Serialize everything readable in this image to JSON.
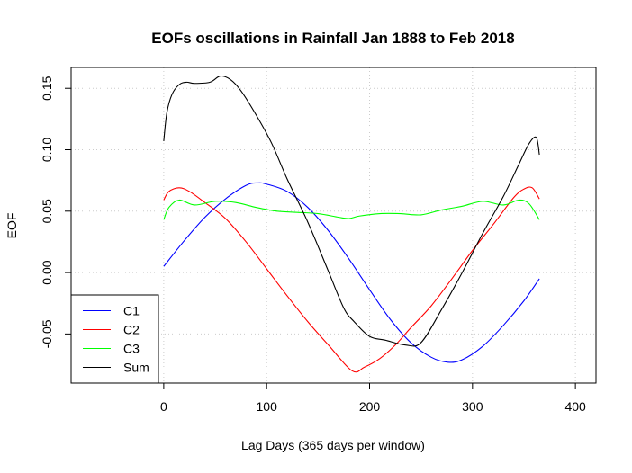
{
  "chart_data": {
    "type": "line",
    "title": "EOFs oscillations in Rainfall Jan 1888 to Feb 2018",
    "xlabel": "Lag Days (365 days per window)",
    "ylabel": "EOF",
    "xlim": [
      -90,
      420
    ],
    "ylim": [
      -0.09,
      0.167
    ],
    "x_ticks": [
      0,
      100,
      200,
      300,
      400
    ],
    "y_ticks": [
      -0.05,
      0.0,
      0.05,
      0.1,
      0.15
    ],
    "x_tick_labels": [
      "0",
      "100",
      "200",
      "300",
      "400"
    ],
    "y_tick_labels": [
      "-0.05",
      "0.00",
      "0.05",
      "0.10",
      "0.15"
    ],
    "grid": true,
    "legend_position": "bottom-left",
    "series": [
      {
        "name": "C1",
        "color": "#0000ff",
        "x": [
          0,
          20,
          40,
          60,
          80,
          91,
          100,
          120,
          140,
          160,
          180,
          200,
          220,
          240,
          260,
          276,
          290,
          310,
          330,
          350,
          365
        ],
        "y": [
          0.005,
          0.026,
          0.045,
          0.06,
          0.071,
          0.073,
          0.072,
          0.066,
          0.053,
          0.034,
          0.011,
          -0.014,
          -0.038,
          -0.057,
          -0.069,
          -0.073,
          -0.071,
          -0.06,
          -0.043,
          -0.023,
          -0.005
        ]
      },
      {
        "name": "C2",
        "color": "#ff0000",
        "x": [
          0,
          5,
          15,
          25,
          40,
          60,
          80,
          100,
          120,
          140,
          160,
          183,
          195,
          210,
          225,
          240,
          260,
          280,
          300,
          320,
          340,
          350,
          358,
          365
        ],
        "y": [
          0.059,
          0.066,
          0.069,
          0.066,
          0.057,
          0.044,
          0.025,
          0.003,
          -0.019,
          -0.04,
          -0.059,
          -0.08,
          -0.077,
          -0.07,
          -0.059,
          -0.045,
          -0.027,
          -0.005,
          0.018,
          0.039,
          0.061,
          0.068,
          0.069,
          0.06
        ]
      },
      {
        "name": "C3",
        "color": "#00ff00",
        "x": [
          0,
          5,
          15,
          30,
          50,
          70,
          90,
          110,
          130,
          150,
          170,
          180,
          190,
          210,
          230,
          250,
          270,
          290,
          310,
          330,
          345,
          355,
          365
        ],
        "y": [
          0.043,
          0.053,
          0.059,
          0.055,
          0.058,
          0.057,
          0.053,
          0.05,
          0.049,
          0.048,
          0.045,
          0.044,
          0.046,
          0.048,
          0.048,
          0.047,
          0.051,
          0.054,
          0.058,
          0.055,
          0.059,
          0.056,
          0.043
        ]
      },
      {
        "name": "Sum",
        "color": "#000000",
        "x": [
          0,
          3,
          8,
          15,
          22,
          30,
          45,
          55,
          65,
          75,
          90,
          105,
          120,
          140,
          160,
          175,
          185,
          200,
          215,
          235,
          250,
          270,
          290,
          310,
          330,
          345,
          355,
          362,
          365
        ],
        "y": [
          0.107,
          0.13,
          0.145,
          0.153,
          0.155,
          0.154,
          0.155,
          0.16,
          0.157,
          0.148,
          0.128,
          0.105,
          0.076,
          0.041,
          0.001,
          -0.029,
          -0.04,
          -0.052,
          -0.055,
          -0.059,
          -0.057,
          -0.03,
          0.0,
          0.032,
          0.062,
          0.088,
          0.105,
          0.11,
          0.096
        ]
      }
    ]
  }
}
